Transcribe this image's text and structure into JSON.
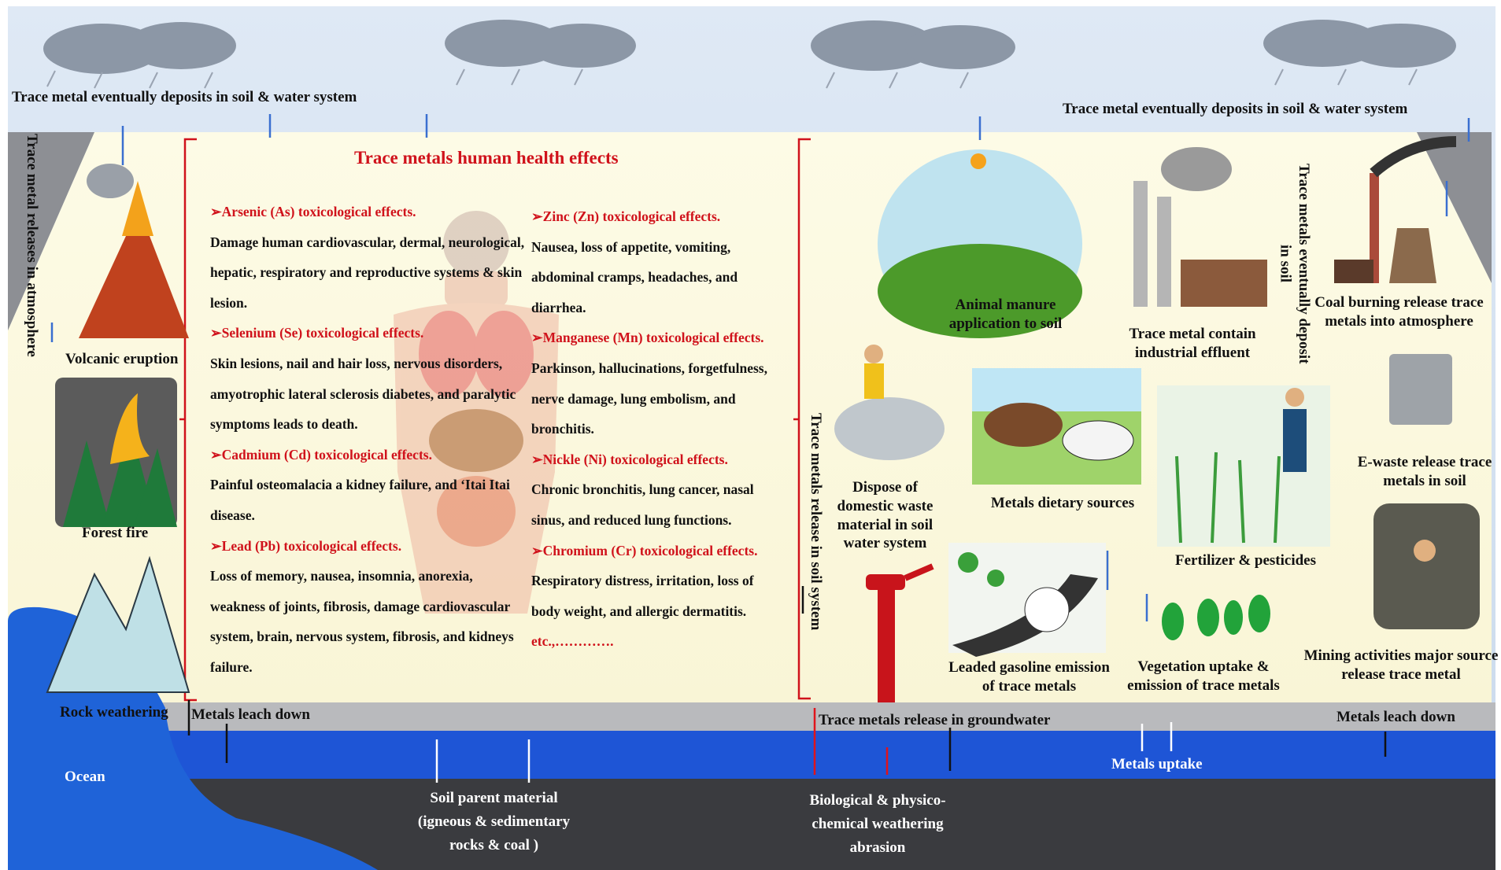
{
  "sky": {
    "left_label": "Trace metal  eventually deposits in soil & water system",
    "right_label": "Trace metal  eventually deposits in soil & water system"
  },
  "atmosphere_label": "Trace metal releases in atmosphere",
  "natural_sources": [
    "Volcanic eruption",
    "Forest fire",
    "Rock weathering"
  ],
  "health": {
    "title": "Trace metals human health effects",
    "columns": [
      [
        {
          "heading": "➢Arsenic (As) toxicological effects.",
          "text": "Damage human cardiovascular, dermal, neurological, hepatic, respiratory and reproductive systems & skin lesion."
        },
        {
          "heading": "➢Selenium (Se) toxicological effects.",
          "text": "Skin lesions, nail and hair loss, nervous disorders, amyotrophic lateral sclerosis diabetes, and paralytic symptoms leads to death."
        },
        {
          "heading": "➢Cadmium (Cd) toxicological effects.",
          "text": "Painful osteomalacia a kidney failure, and ‘Itai Itai disease."
        },
        {
          "heading": "➢Lead  (Pb) toxicological effects.",
          "text": "Loss of memory, nausea, insomnia, anorexia, weakness of joints, fibrosis, damage cardiovascular system, brain, nervous system, fibrosis, and kidneys failure."
        }
      ],
      [
        {
          "heading": "➢Zinc (Zn) toxicological effects.",
          "text": "Nausea, loss of appetite, vomiting, abdominal cramps, headaches, and diarrhea."
        },
        {
          "heading": "➢Manganese (Mn) toxicological effects.",
          "text": "Parkinson, hallucinations, forgetfulness, nerve damage, lung embolism, and bronchitis."
        },
        {
          "heading": "➢Nickle (Ni) toxicological effects.",
          "text": "Chronic bronchitis, lung cancer, nasal sinus, and reduced lung functions."
        },
        {
          "heading": "➢Chromium (Cr) toxicological effects.",
          "text": "Respiratory distress, irritation, loss of body weight, and allergic dermatitis."
        }
      ]
    ],
    "etc": "etc.,…………."
  },
  "anthropogenic": {
    "manure": "Animal manure application to soil",
    "effluent": "Trace metal contain industrial effluent",
    "deposit": "Trace metals eventually deposit in soil",
    "coal": "Coal burning release trace metals into atmosphere",
    "waste": "Dispose of domestic waste material in soil water system",
    "dietary": "Metals dietary sources",
    "ewaste": "E-waste release trace metals in soil",
    "fertilizer": "Fertilizer & pesticides",
    "gasoline": "Leaded gasoline emission of trace metals",
    "vegetation": "Vegetation uptake & emission of trace metals",
    "mining": "Mining activities major source release trace metal",
    "soil_release": "Trace metals release in soil system"
  },
  "ground": {
    "leach_left": "Metals leach down",
    "groundwater": "Trace metals release in groundwater",
    "leach_right": "Metals leach down",
    "uptake": "Metals uptake",
    "ocean": "Ocean",
    "parent": "Soil parent material (igneous & sedimentary rocks & coal )",
    "weathering": "Biological & physico-chemical weathering abrasion"
  }
}
